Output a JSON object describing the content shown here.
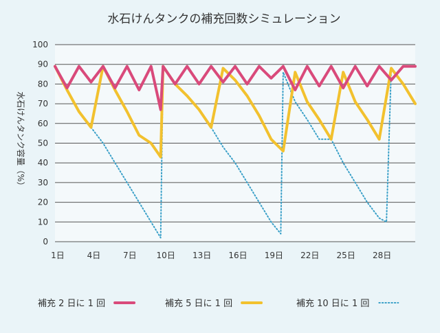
{
  "chart_data": {
    "type": "line",
    "title": "水石けんタンクの補充回数シミュレーション",
    "ylabel": "水石けんタンク容量（%）",
    "xlabel": "",
    "ylim": [
      0,
      100
    ],
    "yticks": [
      0,
      10,
      20,
      30,
      40,
      50,
      60,
      70,
      80,
      90,
      100
    ],
    "xlim": [
      1,
      31
    ],
    "xticks": [
      {
        "x": 1,
        "label": "1日"
      },
      {
        "x": 4,
        "label": "4日"
      },
      {
        "x": 7,
        "label": "7日"
      },
      {
        "x": 10,
        "label": "10日"
      },
      {
        "x": 13,
        "label": "13日"
      },
      {
        "x": 16,
        "label": "16日"
      },
      {
        "x": 19,
        "label": "19日"
      },
      {
        "x": 22,
        "label": "22日"
      },
      {
        "x": 25,
        "label": "25日"
      },
      {
        "x": 28,
        "label": "28日"
      }
    ],
    "grid": true,
    "legend_position": "bottom",
    "series": [
      {
        "name": "補充 2 日に 1 回",
        "color": "#d94a7b",
        "style": "solid",
        "x": [
          1,
          2,
          3,
          4,
          5,
          6,
          7,
          8,
          9,
          9.8,
          10,
          11,
          12,
          13,
          14,
          15,
          16,
          17,
          18,
          19,
          20,
          21,
          22,
          23,
          24,
          25,
          26,
          27,
          28,
          29,
          30,
          31
        ],
        "y": [
          89,
          78,
          89,
          81,
          89,
          78,
          89,
          77,
          89,
          67,
          89,
          80,
          89,
          80,
          89,
          81,
          89,
          80,
          89,
          83,
          89,
          77,
          89,
          79,
          89,
          78,
          89,
          79,
          89,
          82,
          89,
          89
        ]
      },
      {
        "name": "補充 5 日に 1 回",
        "color": "#f2c12e",
        "style": "solid",
        "x": [
          1,
          2,
          3,
          4,
          5,
          6,
          7,
          8,
          9,
          9.8,
          10,
          11,
          12,
          13,
          14,
          15,
          16,
          17,
          18,
          19,
          20,
          21,
          22,
          23,
          24,
          25,
          26,
          27,
          28,
          29,
          30,
          31
        ],
        "y": [
          89,
          77,
          66,
          58,
          89,
          77,
          66,
          54,
          50,
          43,
          89,
          80,
          74,
          67,
          58,
          88,
          82,
          74,
          64,
          52,
          46,
          86,
          71,
          62,
          52,
          86,
          71,
          62,
          52,
          88,
          80,
          70
        ]
      },
      {
        "name": "補充 10 日に 1 回",
        "color": "#3aa0c8",
        "style": "dotted",
        "x": [
          1,
          2,
          3,
          4,
          5,
          6,
          7,
          8,
          9,
          9.8,
          10,
          11,
          12,
          13,
          14,
          15,
          16,
          17,
          18,
          19,
          19.8,
          20,
          21,
          22,
          23,
          24,
          25,
          26,
          27,
          28,
          28.6,
          29,
          30,
          31
        ],
        "y": [
          89,
          77,
          66,
          58,
          50,
          40,
          30,
          20,
          10,
          2,
          89,
          80,
          74,
          67,
          58,
          48,
          40,
          30,
          20,
          10,
          4,
          86,
          71,
          62,
          52,
          52,
          40,
          30,
          20,
          12,
          10,
          88,
          80,
          70
        ]
      }
    ]
  }
}
